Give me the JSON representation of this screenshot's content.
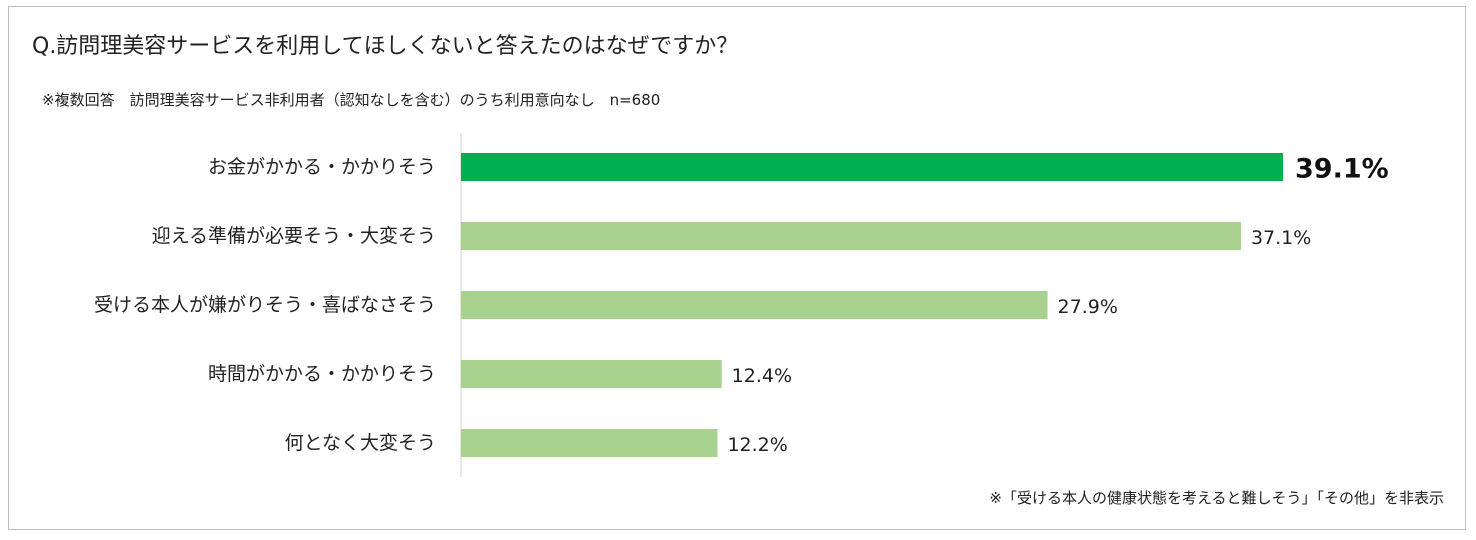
{
  "title": "Q.訪問理美容サービスを利用してほしくないと答えたのはなぜですか？",
  "subtitle": "※複数回答　訪問理美容サービス非利用者（認知なしを含む）のうち利用意向なし　n=680",
  "footnote": "※「受ける本人の健康状態を考えると難しそう」「その他」を非表示",
  "colors": {
    "highlight": "#00b050",
    "bar": "#a9d18e",
    "axis": "#d0d0d0"
  },
  "chart_data": {
    "type": "bar",
    "orientation": "horizontal",
    "categories": [
      "お金がかかる・かかりそう",
      "迎える準備が必要そう・大変そう",
      "受ける本人が嫌がりそう・喜ばなさそう",
      "時間がかかる・かかりそう",
      "何となく大変そう"
    ],
    "values": [
      39.1,
      37.1,
      27.9,
      12.4,
      12.2
    ],
    "value_labels": [
      "39.1%",
      "37.1%",
      "27.9%",
      "12.4%",
      "12.2%"
    ],
    "highlight_index": 0,
    "xlim": [
      0,
      39.1
    ],
    "grid": false,
    "legend": "none"
  }
}
